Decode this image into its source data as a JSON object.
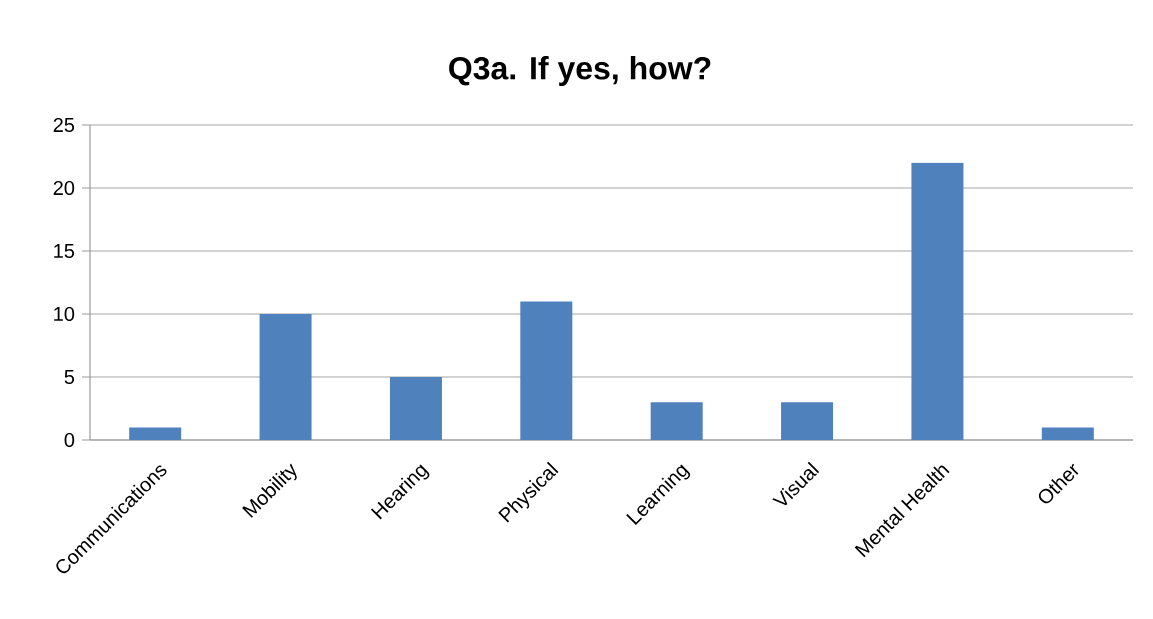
{
  "chart_data": {
    "type": "bar",
    "title": "Q3a. If yes,  how?",
    "categories": [
      "Communications",
      "Mobility",
      "Hearing",
      "Physical",
      "Learning",
      "Visual",
      "Mental Health",
      "Other"
    ],
    "values": [
      1,
      10,
      5,
      11,
      3,
      3,
      22,
      1
    ],
    "color": "#4f81bd",
    "ylim": [
      0,
      25
    ],
    "yticks": [
      0,
      5,
      10,
      15,
      20,
      25
    ],
    "grid": "y"
  }
}
